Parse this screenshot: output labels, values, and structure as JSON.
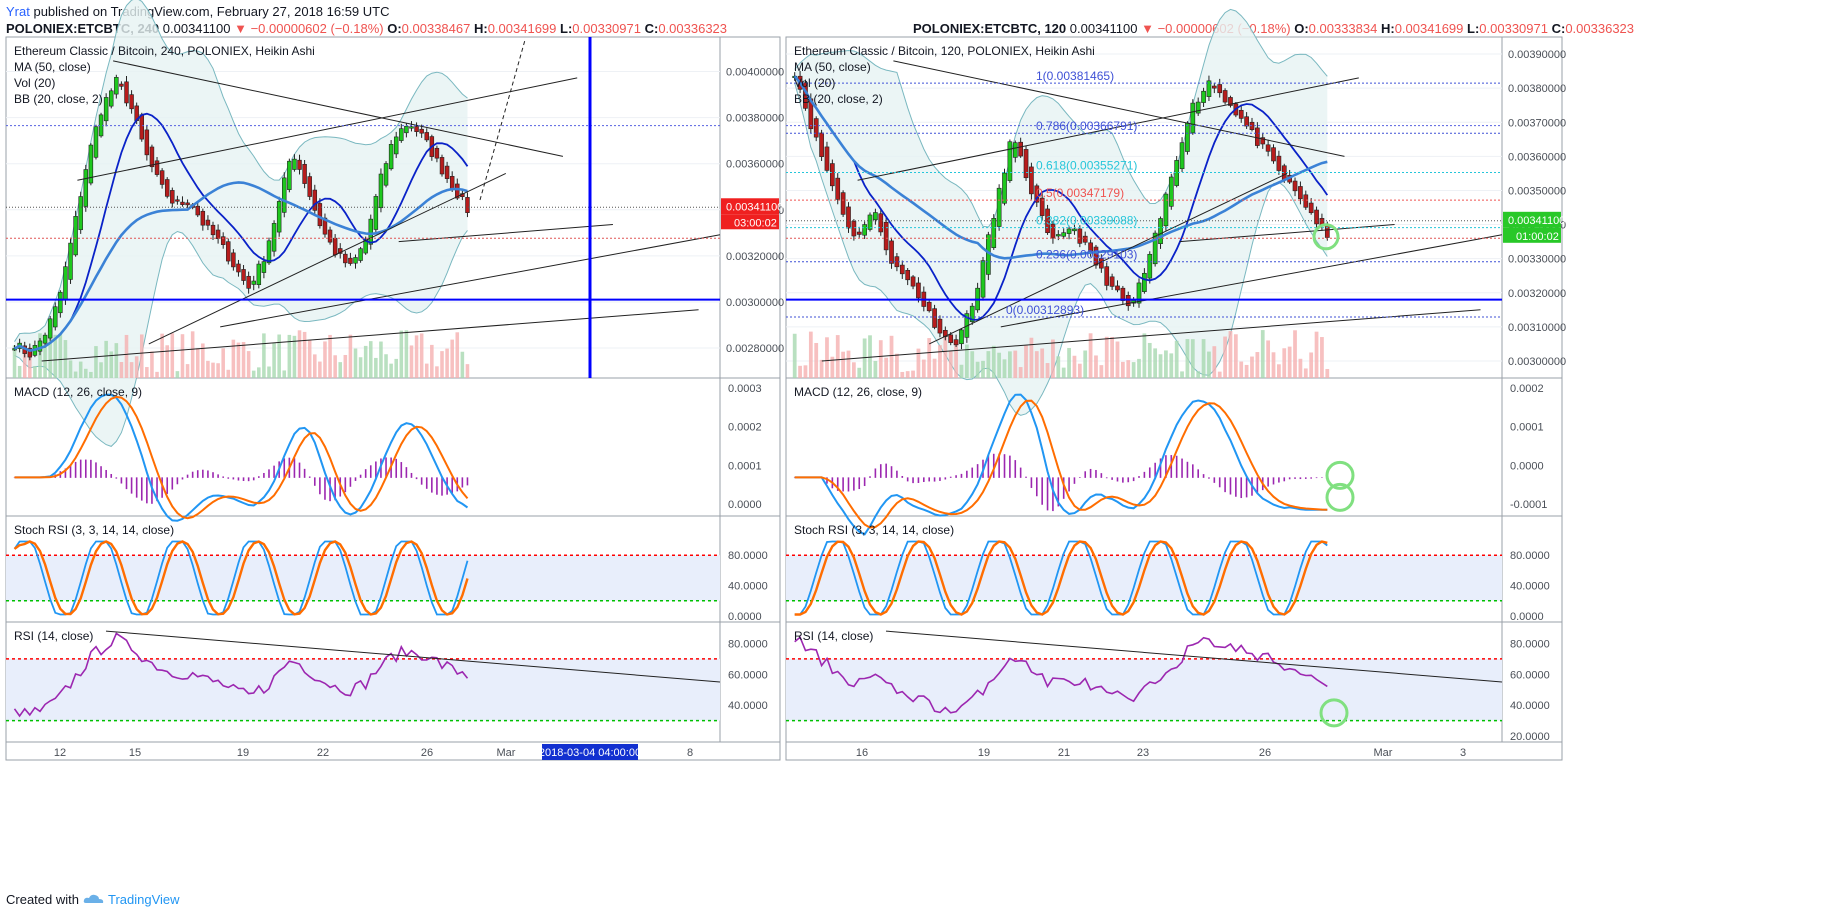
{
  "publisher": {
    "user": "Yrat",
    "text": "published on TradingView.com, February 27, 2018 16:59 UTC"
  },
  "footer": {
    "created_with": "Created with",
    "brand": "TradingView"
  },
  "colors": {
    "bull": "#26a69a",
    "bear": "#ef5350",
    "ma": "#3b82d6",
    "bb": "#7ab8c0",
    "macd_line": "#2196f3",
    "macd_signal": "#ff6d00",
    "macd_hist": "#9c27b0",
    "rsi": "#9c27b0",
    "level_hi": "#ff0000",
    "level_lo": "#00c000",
    "circle": "#80e080",
    "blue_line": "#0000ff",
    "price_badge_left": "#ef2020",
    "price_badge_right": "#28c828"
  },
  "charts": [
    {
      "id": "left",
      "symbol": "POLONIEX:ETCBTC, 240",
      "last": "0.00341100",
      "change": "▼ −0.00000602 (−0.18%)",
      "ohlc": {
        "O": "0.00338467",
        "H": "0.00341699",
        "L": "0.00330971",
        "C": "0.00336323"
      },
      "legend": [
        "Ethereum Classic / Bitcoin, 240, POLONIEX, Heikin Ashi",
        "MA (50, close)",
        "Vol (20)",
        "BB (20, close, 2)"
      ],
      "price_badge": "0.00341100",
      "time_badge": "03:00:02",
      "main_ticks": [
        "0.00400000",
        "0.00380000",
        "0.00360000",
        "0.00340000",
        "0.00320000",
        "0.00300000",
        "0.00280000"
      ],
      "macd_title": "MACD (12, 26, close, 9)",
      "macd_ticks": [
        "0.0003",
        "0.0002",
        "0.0001",
        "0.0000"
      ],
      "stoch_title": "Stoch RSI (3, 3, 14, 14, close)",
      "stoch_ticks": [
        "80.0000",
        "40.0000",
        "0.0000"
      ],
      "rsi_title": "RSI (14, close)",
      "rsi_ticks": [
        "80.0000",
        "60.0000",
        "40.0000"
      ],
      "x_labels": [
        "12",
        "15",
        "19",
        "22",
        "26",
        "Mar",
        "8"
      ],
      "x_badge": "2018-03-04 04:00:00"
    },
    {
      "id": "right",
      "symbol": "POLONIEX:ETCBTC, 120",
      "last": "0.00341100",
      "change": "▼ −0.00000602 (−0.18%)",
      "ohlc": {
        "O": "0.00333834",
        "H": "0.00341699",
        "L": "0.00330971",
        "C": "0.00336323"
      },
      "legend": [
        "Ethereum Classic / Bitcoin, 120, POLONIEX, Heikin Ashi",
        "MA (50, close)",
        "Vol (20)",
        "BB (20, close, 2)"
      ],
      "price_badge": "0.00341100",
      "time_badge": "01:00:02",
      "main_ticks": [
        "0.00390000",
        "0.00380000",
        "0.00370000",
        "0.00360000",
        "0.00350000",
        "0.00340000",
        "0.00330000",
        "0.00320000",
        "0.00310000",
        "0.00300000"
      ],
      "macd_title": "MACD (12, 26, close, 9)",
      "macd_ticks": [
        "0.0002",
        "0.0001",
        "0.0000",
        "-0.0001"
      ],
      "stoch_title": "Stoch RSI (3, 3, 14, 14, close)",
      "stoch_ticks": [
        "80.0000",
        "40.0000",
        "0.0000"
      ],
      "rsi_title": "RSI (14, close)",
      "rsi_ticks": [
        "80.0000",
        "60.0000",
        "40.0000",
        "20.0000"
      ],
      "x_labels": [
        "16",
        "19",
        "21",
        "23",
        "26",
        "Mar",
        "3"
      ],
      "fib_levels": [
        {
          "label": "1(0.00381465)",
          "price": 0.00381465,
          "color": "#3f51d6"
        },
        {
          "label": "0.786(0.00366791)",
          "price": 0.00366791,
          "color": "#3f51d6"
        },
        {
          "label": "0.618(0.00355271)",
          "price": 0.00355271,
          "color": "#26c6da"
        },
        {
          "label": "0.5(0.00347179)",
          "price": 0.00347179,
          "color": "#ef5350"
        },
        {
          "label": "0.382(0.00339088)",
          "price": 0.00339088,
          "color": "#26c6da"
        },
        {
          "label": "0.236(0.00329103)",
          "price": 0.00329103,
          "color": "#3f51d6"
        },
        {
          "label": "0(0.00312893)",
          "price": 0.00312893,
          "color": "#3f51d6"
        }
      ]
    }
  ],
  "chart_data": [
    {
      "type": "candlestick",
      "title": "Ethereum Classic / Bitcoin, 240, POLONIEX, Heikin Ashi",
      "ylim": [
        0.00267,
        0.00415
      ],
      "close_path": [
        0.00282,
        0.00277,
        0.00285,
        0.003,
        0.0033,
        0.00362,
        0.00385,
        0.00396,
        0.00384,
        0.00364,
        0.0035,
        0.00342,
        0.00344,
        0.00333,
        0.00326,
        0.00316,
        0.00306,
        0.00318,
        0.0034,
        0.00366,
        0.0035,
        0.00332,
        0.00321,
        0.00315,
        0.00326,
        0.00352,
        0.00372,
        0.00378,
        0.00371,
        0.0036,
        0.0035,
        0.0034
      ],
      "x_range_labels": [
        "12",
        "15",
        "19",
        "22",
        "26",
        "Mar",
        "8"
      ]
    },
    {
      "type": "candlestick",
      "title": "Ethereum Classic / Bitcoin, 120, POLONIEX, Heikin Ashi",
      "ylim": [
        0.00295,
        0.00395
      ],
      "close_path": [
        0.00385,
        0.00366,
        0.0035,
        0.00336,
        0.00344,
        0.00328,
        0.00322,
        0.00312,
        0.00304,
        0.00316,
        0.0034,
        0.00366,
        0.0035,
        0.00334,
        0.0034,
        0.00331,
        0.00322,
        0.00315,
        0.0033,
        0.00352,
        0.00373,
        0.00382,
        0.00376,
        0.00368,
        0.0036,
        0.00352,
        0.00345,
        0.00336
      ],
      "x_range_labels": [
        "16",
        "19",
        "21",
        "23",
        "26",
        "Mar",
        "3"
      ]
    }
  ]
}
